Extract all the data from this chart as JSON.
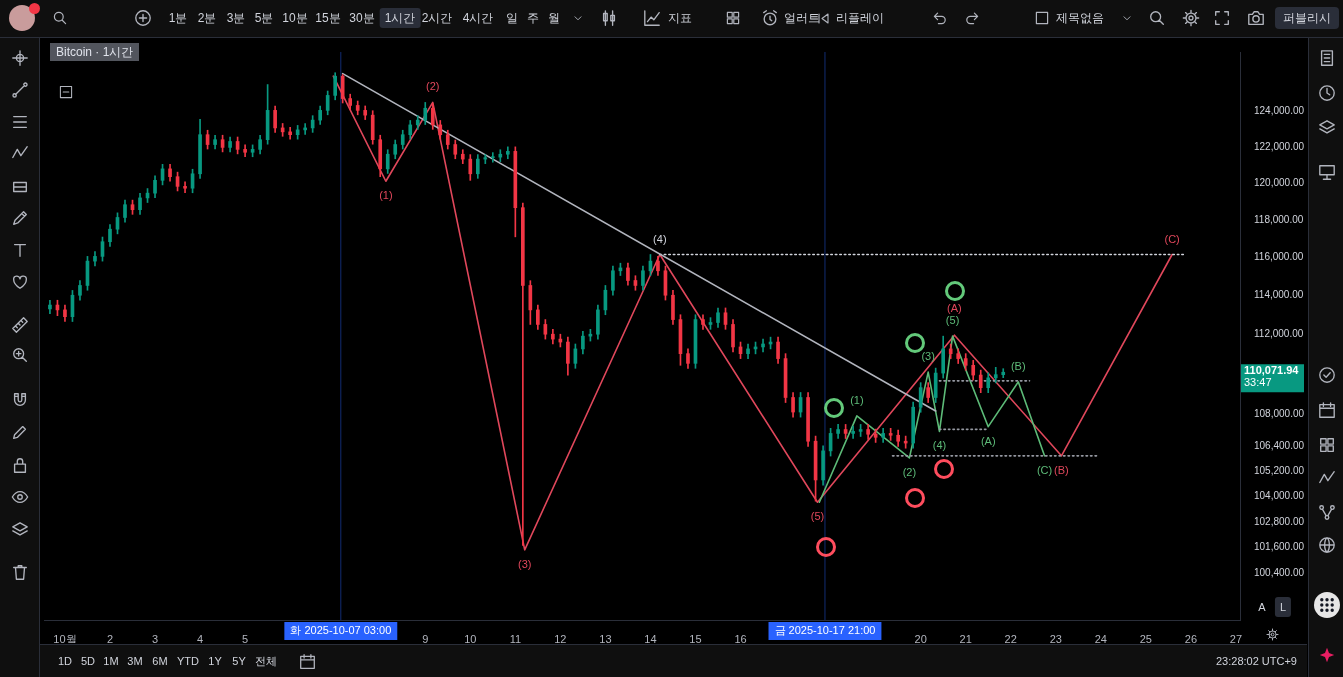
{
  "chart_data": {
    "type": "candlestick",
    "title": "Bitcoin · 1시간",
    "log": true,
    "xlim": [
      "2025-09-30T12:50",
      "2025-10-27T02:10"
    ],
    "ylim": [
      98300,
      127400
    ],
    "xticks": [
      {
        "value": "2025-10-01",
        "label": "10월"
      },
      {
        "value": "2025-10-02",
        "label": "2"
      },
      {
        "value": "2025-10-03",
        "label": "3"
      },
      {
        "value": "2025-10-04",
        "label": "4"
      },
      {
        "value": "2025-10-05",
        "label": "5"
      },
      {
        "value": "2025-10-09",
        "label": "9"
      },
      {
        "value": "2025-10-10",
        "label": "10"
      },
      {
        "value": "2025-10-11",
        "label": "11"
      },
      {
        "value": "2025-10-12",
        "label": "12"
      },
      {
        "value": "2025-10-13",
        "label": "13"
      },
      {
        "value": "2025-10-14",
        "label": "14"
      },
      {
        "value": "2025-10-15",
        "label": "15"
      },
      {
        "value": "2025-10-16",
        "label": "16"
      },
      {
        "value": "2025-10-20",
        "label": "20"
      },
      {
        "value": "2025-10-21",
        "label": "21"
      },
      {
        "value": "2025-10-22",
        "label": "22"
      },
      {
        "value": "2025-10-23",
        "label": "23"
      },
      {
        "value": "2025-10-24",
        "label": "24"
      },
      {
        "value": "2025-10-25",
        "label": "25"
      },
      {
        "value": "2025-10-26",
        "label": "26"
      },
      {
        "value": "2025-10-27",
        "label": "27"
      }
    ],
    "yticks": [
      {
        "value": 124000,
        "label": "124,000.00"
      },
      {
        "value": 122000,
        "label": "122,000.00"
      },
      {
        "value": 120000,
        "label": "120,000.00"
      },
      {
        "value": 118000,
        "label": "118,000.00"
      },
      {
        "value": 116000,
        "label": "116,000.00"
      },
      {
        "value": 114000,
        "label": "114,000.00"
      },
      {
        "value": 112000,
        "label": "112,000.00"
      },
      {
        "value": 108000,
        "label": "108,000.00"
      },
      {
        "value": 106400,
        "label": "106,400.00"
      },
      {
        "value": 105200,
        "label": "105,200.00"
      },
      {
        "value": 104000,
        "label": "104,000.00"
      },
      {
        "value": 102800,
        "label": "102,800.00"
      },
      {
        "value": 101600,
        "label": "101,600.00"
      },
      {
        "value": 100400,
        "label": "100,400.00"
      }
    ],
    "x": [
      "2025-09-30T16:00",
      "2025-09-30T20:00",
      "2025-10-01T00:00",
      "2025-10-01T04:00",
      "2025-10-01T08:00",
      "2025-10-01T12:00",
      "2025-10-01T16:00",
      "2025-10-01T20:00",
      "2025-10-02T00:00",
      "2025-10-02T04:00",
      "2025-10-02T08:00",
      "2025-10-02T12:00",
      "2025-10-02T16:00",
      "2025-10-02T20:00",
      "2025-10-03T00:00",
      "2025-10-03T04:00",
      "2025-10-03T08:00",
      "2025-10-03T12:00",
      "2025-10-03T16:00",
      "2025-10-03T20:00",
      "2025-10-04T00:00",
      "2025-10-04T04:00",
      "2025-10-04T08:00",
      "2025-10-04T12:00",
      "2025-10-04T16:00",
      "2025-10-04T20:00",
      "2025-10-05T00:00",
      "2025-10-05T04:00",
      "2025-10-05T08:00",
      "2025-10-05T12:00",
      "2025-10-05T16:00",
      "2025-10-05T20:00",
      "2025-10-06T00:00",
      "2025-10-06T04:00",
      "2025-10-06T08:00",
      "2025-10-06T12:00",
      "2025-10-06T16:00",
      "2025-10-06T20:00",
      "2025-10-07T00:00",
      "2025-10-07T04:00",
      "2025-10-07T08:00",
      "2025-10-07T12:00",
      "2025-10-07T16:00",
      "2025-10-07T20:00",
      "2025-10-08T00:00",
      "2025-10-08T04:00",
      "2025-10-08T08:00",
      "2025-10-08T12:00",
      "2025-10-08T16:00",
      "2025-10-08T20:00",
      "2025-10-09T00:00",
      "2025-10-09T04:00",
      "2025-10-09T08:00",
      "2025-10-09T12:00",
      "2025-10-09T16:00",
      "2025-10-09T20:00",
      "2025-10-10T00:00",
      "2025-10-10T04:00",
      "2025-10-10T08:00",
      "2025-10-10T12:00",
      "2025-10-10T16:00",
      "2025-10-10T20:00",
      "2025-10-11T00:00",
      "2025-10-11T04:00",
      "2025-10-11T08:00",
      "2025-10-11T12:00",
      "2025-10-11T16:00",
      "2025-10-11T20:00",
      "2025-10-12T00:00",
      "2025-10-12T04:00",
      "2025-10-12T08:00",
      "2025-10-12T12:00",
      "2025-10-12T16:00",
      "2025-10-12T20:00",
      "2025-10-13T00:00",
      "2025-10-13T04:00",
      "2025-10-13T08:00",
      "2025-10-13T12:00",
      "2025-10-13T16:00",
      "2025-10-13T20:00",
      "2025-10-14T00:00",
      "2025-10-14T04:00",
      "2025-10-14T08:00",
      "2025-10-14T12:00",
      "2025-10-14T16:00",
      "2025-10-14T20:00",
      "2025-10-15T00:00",
      "2025-10-15T04:00",
      "2025-10-15T08:00",
      "2025-10-15T12:00",
      "2025-10-15T16:00",
      "2025-10-15T20:00",
      "2025-10-16T00:00",
      "2025-10-16T04:00",
      "2025-10-16T08:00",
      "2025-10-16T12:00",
      "2025-10-16T16:00",
      "2025-10-16T20:00",
      "2025-10-17T00:00",
      "2025-10-17T04:00",
      "2025-10-17T08:00",
      "2025-10-17T12:00",
      "2025-10-17T16:00",
      "2025-10-17T20:00",
      "2025-10-18T00:00",
      "2025-10-18T04:00",
      "2025-10-18T08:00",
      "2025-10-18T12:00",
      "2025-10-18T16:00",
      "2025-10-18T20:00",
      "2025-10-19T00:00",
      "2025-10-19T04:00",
      "2025-10-19T08:00",
      "2025-10-19T12:00",
      "2025-10-19T16:00",
      "2025-10-19T20:00",
      "2025-10-20T00:00",
      "2025-10-20T04:00",
      "2025-10-20T08:00",
      "2025-10-20T12:00",
      "2025-10-20T16:00",
      "2025-10-20T20:00",
      "2025-10-21T00:00",
      "2025-10-21T04:00",
      "2025-10-21T08:00",
      "2025-10-21T12:00",
      "2025-10-21T16:00",
      "2025-10-21T20:00"
    ],
    "ohlc": [
      [
        113300,
        113750,
        113050,
        113500
      ],
      [
        113500,
        113750,
        112950,
        113250
      ],
      [
        113250,
        113500,
        112650,
        112900
      ],
      [
        112900,
        114260,
        112650,
        114010
      ],
      [
        114010,
        114770,
        113760,
        114520
      ],
      [
        114520,
        116050,
        114270,
        115800
      ],
      [
        115800,
        116300,
        115550,
        116050
      ],
      [
        116050,
        117080,
        115800,
        116830
      ],
      [
        116830,
        117750,
        116580,
        117500
      ],
      [
        117500,
        118380,
        117250,
        118130
      ],
      [
        118130,
        119070,
        117880,
        118820
      ],
      [
        118820,
        119070,
        118300,
        118550
      ],
      [
        118550,
        119440,
        118300,
        119190
      ],
      [
        119190,
        119700,
        118940,
        119450
      ],
      [
        119450,
        120400,
        119200,
        120150
      ],
      [
        120150,
        121030,
        119900,
        120780
      ],
      [
        120780,
        121030,
        120100,
        120350
      ],
      [
        120350,
        120600,
        119570,
        119820
      ],
      [
        119820,
        120070,
        119470,
        119720
      ],
      [
        119720,
        120760,
        119470,
        120510
      ],
      [
        120510,
        123550,
        120260,
        122680
      ],
      [
        122680,
        122930,
        121880,
        122130
      ],
      [
        122130,
        122650,
        121880,
        122400
      ],
      [
        122400,
        122650,
        121720,
        121970
      ],
      [
        121970,
        122550,
        121720,
        122300
      ],
      [
        122300,
        122550,
        121610,
        121860
      ],
      [
        121860,
        122110,
        121450,
        121700
      ],
      [
        121700,
        122110,
        121450,
        121860
      ],
      [
        121860,
        122650,
        121610,
        122400
      ],
      [
        122400,
        125520,
        122150,
        124050
      ],
      [
        124050,
        124300,
        122810,
        123060
      ],
      [
        123060,
        123310,
        122590,
        122840
      ],
      [
        122840,
        123090,
        122430,
        122680
      ],
      [
        122680,
        123200,
        122430,
        122950
      ],
      [
        122950,
        123310,
        122700,
        123060
      ],
      [
        123060,
        123750,
        122810,
        123500
      ],
      [
        123500,
        124300,
        123250,
        124050
      ],
      [
        124050,
        125150,
        123800,
        124900
      ],
      [
        124900,
        126200,
        124650,
        126000
      ],
      [
        126000,
        126100,
        124470,
        124720
      ],
      [
        124720,
        124970,
        124080,
        124330
      ],
      [
        124330,
        124580,
        123800,
        124050
      ],
      [
        124050,
        124300,
        123530,
        123780
      ],
      [
        123780,
        124030,
        122150,
        122400
      ],
      [
        122400,
        122650,
        120350,
        120780
      ],
      [
        120780,
        121840,
        120530,
        121590
      ],
      [
        121590,
        122380,
        121340,
        122130
      ],
      [
        122130,
        122930,
        121880,
        122680
      ],
      [
        122680,
        123480,
        122430,
        123230
      ],
      [
        123230,
        123750,
        122980,
        123500
      ],
      [
        123500,
        124500,
        123250,
        124170
      ],
      [
        124170,
        124420,
        122980,
        123230
      ],
      [
        123230,
        123480,
        122430,
        122680
      ],
      [
        122680,
        122930,
        121880,
        122130
      ],
      [
        122130,
        122380,
        121340,
        121590
      ],
      [
        121590,
        121840,
        121070,
        121320
      ],
      [
        121320,
        121570,
        120150,
        120510
      ],
      [
        120510,
        121570,
        120260,
        121320
      ],
      [
        121320,
        121570,
        121070,
        121400
      ],
      [
        121400,
        121680,
        121150,
        121430
      ],
      [
        121430,
        121840,
        121180,
        121590
      ],
      [
        121590,
        122000,
        121340,
        121750
      ],
      [
        121750,
        122000,
        117090,
        118660
      ],
      [
        118660,
        118910,
        101700,
        114520
      ],
      [
        114520,
        114770,
        112500,
        113250
      ],
      [
        113250,
        113500,
        112250,
        112500
      ],
      [
        112500,
        112750,
        111750,
        112000
      ],
      [
        112000,
        112250,
        111500,
        111750
      ],
      [
        111750,
        112000,
        111350,
        111600
      ],
      [
        111600,
        111850,
        109930,
        110520
      ],
      [
        110520,
        111500,
        110270,
        111250
      ],
      [
        111250,
        112150,
        111000,
        111900
      ],
      [
        111900,
        112250,
        111650,
        112000
      ],
      [
        112000,
        113500,
        111750,
        113250
      ],
      [
        113250,
        114520,
        113000,
        114270
      ],
      [
        114270,
        115540,
        114020,
        115290
      ],
      [
        115290,
        115690,
        115040,
        115440
      ],
      [
        115440,
        115690,
        114530,
        114780
      ],
      [
        114780,
        115030,
        114270,
        114520
      ],
      [
        114520,
        115540,
        114270,
        115290
      ],
      [
        115290,
        116150,
        115040,
        115800
      ],
      [
        115800,
        116050,
        115040,
        115290
      ],
      [
        115290,
        115540,
        113760,
        114010
      ],
      [
        114010,
        114260,
        112500,
        112750
      ],
      [
        112750,
        113000,
        110420,
        111010
      ],
      [
        111010,
        111260,
        110270,
        110520
      ],
      [
        110520,
        113000,
        110270,
        112750
      ],
      [
        112750,
        113000,
        112250,
        112500
      ],
      [
        112500,
        112850,
        112250,
        112600
      ],
      [
        112600,
        113350,
        112350,
        113100
      ],
      [
        113100,
        113350,
        112250,
        112500
      ],
      [
        112500,
        112750,
        111100,
        111350
      ],
      [
        111350,
        111600,
        110760,
        111010
      ],
      [
        111010,
        111500,
        110760,
        111250
      ],
      [
        111250,
        111600,
        111000,
        111350
      ],
      [
        111350,
        111750,
        111100,
        111500
      ],
      [
        111500,
        111850,
        111250,
        111600
      ],
      [
        111600,
        111850,
        110510,
        110760
      ],
      [
        110760,
        111010,
        108560,
        108810
      ],
      [
        108810,
        109060,
        107840,
        108090
      ],
      [
        108090,
        109060,
        107840,
        108810
      ],
      [
        108810,
        109060,
        106410,
        106660
      ],
      [
        106660,
        106910,
        103780,
        104790
      ],
      [
        104790,
        106440,
        104540,
        106190
      ],
      [
        106190,
        107290,
        105940,
        107040
      ],
      [
        107040,
        107480,
        106790,
        107230
      ],
      [
        107230,
        107480,
        106790,
        107040
      ],
      [
        107040,
        107390,
        106790,
        107140
      ],
      [
        107140,
        107480,
        106890,
        107230
      ],
      [
        107230,
        107480,
        106750,
        107000
      ],
      [
        107000,
        107250,
        106600,
        106850
      ],
      [
        106850,
        107290,
        106600,
        107040
      ],
      [
        107040,
        107290,
        106700,
        106950
      ],
      [
        106950,
        107200,
        106410,
        106660
      ],
      [
        106660,
        106910,
        106320,
        106570
      ],
      [
        106570,
        108580,
        106320,
        108330
      ],
      [
        108330,
        109550,
        108080,
        109300
      ],
      [
        109300,
        109550,
        108560,
        108810
      ],
      [
        108810,
        110280,
        108560,
        110030
      ],
      [
        110030,
        111900,
        109780,
        111250
      ],
      [
        111250,
        111500,
        110760,
        111010
      ],
      [
        111010,
        111260,
        110510,
        110760
      ],
      [
        110760,
        111010,
        110170,
        110420
      ],
      [
        110420,
        110670,
        109680,
        109930
      ],
      [
        109930,
        110180,
        109050,
        109300
      ],
      [
        109300,
        110040,
        109050,
        109790
      ],
      [
        109790,
        110320,
        109540,
        109950
      ],
      [
        109950,
        110250,
        109800,
        110071.94
      ]
    ],
    "colors": [
      "#089981",
      "#f23645",
      "#f23645",
      "#089981",
      "#089981",
      "#089981",
      "#089981",
      "#089981",
      "#089981",
      "#089981",
      "#089981",
      "#f23645",
      "#089981",
      "#089981",
      "#089981",
      "#089981",
      "#f23645",
      "#f23645",
      "#f23645",
      "#089981",
      "#089981",
      "#f23645",
      "#089981",
      "#f23645",
      "#089981",
      "#f23645",
      "#f23645",
      "#089981",
      "#089981",
      "#089981",
      "#f23645",
      "#f23645",
      "#f23645",
      "#089981",
      "#089981",
      "#089981",
      "#089981",
      "#089981",
      "#089981",
      "#f23645",
      "#f23645",
      "#f23645",
      "#f23645",
      "#f23645",
      "#f23645",
      "#089981",
      "#089981",
      "#089981",
      "#089981",
      "#089981",
      "#089981",
      "#f23645",
      "#f23645",
      "#f23645",
      "#f23645",
      "#f23645",
      "#f23645",
      "#089981",
      "#089981",
      "#089981",
      "#089981",
      "#089981",
      "#f23645",
      "#f23645",
      "#f23645",
      "#f23645",
      "#f23645",
      "#f23645",
      "#f23645",
      "#f23645",
      "#089981",
      "#089981",
      "#089981",
      "#089981",
      "#089981",
      "#089981",
      "#089981",
      "#f23645",
      "#f23645",
      "#089981",
      "#089981",
      "#f23645",
      "#f23645",
      "#f23645",
      "#f23645",
      "#f23645",
      "#089981",
      "#f23645",
      "#089981",
      "#089981",
      "#f23645",
      "#f23645",
      "#f23645",
      "#089981",
      "#089981",
      "#089981",
      "#089981",
      "#f23645",
      "#f23645",
      "#f23645",
      "#089981",
      "#f23645",
      "#f23645",
      "#089981",
      "#089981",
      "#089981",
      "#f23645",
      "#089981",
      "#089981",
      "#f23645",
      "#f23645",
      "#089981",
      "#f23645",
      "#f23645",
      "#f23645",
      "#089981",
      "#089981",
      "#f23645",
      "#089981",
      "#089981",
      "#f23645",
      "#f23645",
      "#f23645",
      "#f23645",
      "#f23645",
      "#089981",
      "#089981",
      "#089981"
    ],
    "series": [
      {
        "type": "line",
        "color": "#b2b5be",
        "x": [
          "2025-10-07T04:00",
          "2025-10-20T08:00"
        ],
        "values": [
          126150,
          108140
        ]
      },
      {
        "type": "line",
        "color": "#d1d4dc",
        "line_style": "dotted",
        "x": [
          "2025-10-14T05:00",
          "2025-10-25T21:00"
        ],
        "values": [
          116150,
          116150
        ]
      },
      {
        "type": "line",
        "color": "#9598a1",
        "line_style": "dotted",
        "x": [
          "2025-10-19T09:00",
          "2025-10-23T22:00"
        ],
        "values": [
          105950,
          105950
        ]
      },
      {
        "type": "line",
        "color": "#9598a1",
        "line_style": "dotted",
        "x": [
          "2025-10-20T10:00",
          "2025-10-21T12:00"
        ],
        "values": [
          107240,
          107240
        ]
      },
      {
        "type": "line",
        "color": "#9598a1",
        "line_style": "dotted",
        "x": [
          "2025-10-20T10:00",
          "2025-10-22T10:00"
        ],
        "values": [
          109640,
          109640
        ]
      },
      {
        "type": "line",
        "color": "#5dbb78",
        "x": [
          "2025-10-17T18:00",
          "2025-10-18T14:00",
          "2025-10-19T18:00",
          "2025-10-20T04:00",
          "2025-10-20T10:00",
          "2025-10-20T17:00",
          "2025-10-21T12:00",
          "2025-10-22T04:00",
          "2025-10-22T18:00"
        ],
        "values": [
          103730,
          107900,
          105850,
          110080,
          107140,
          111900,
          107370,
          109590,
          105950
        ]
      },
      {
        "type": "line",
        "color": "#e0475b",
        "x": [
          "2025-10-06T23:00",
          "2025-10-08T03:00",
          "2025-10-09T04:00",
          "2025-10-11T05:00",
          "2025-10-14T05:00",
          "2025-10-17T17:00",
          "2025-10-20T18:00",
          "2025-10-23T03:00",
          "2025-10-25T14:00"
        ],
        "values": [
          126000,
          120100,
          124500,
          101500,
          116150,
          103730,
          111950,
          105950,
          116150
        ]
      }
    ],
    "ref_lines": [
      {
        "axis": "x",
        "value": "2025-10-07T03:00",
        "label": "화 2025-10-07 03:00",
        "color": "#2962ff"
      },
      {
        "axis": "x",
        "value": "2025-10-17T21:00",
        "label": "금 2025-10-17 21:00",
        "color": "#2962ff"
      }
    ],
    "annotations": [
      "1분",
      "2분",
      "3분",
      "5분",
      "10분",
      "15분",
      "30분",
      "1시간",
      "2시간",
      "4시간",
      "일",
      "주",
      "월",
      "지표",
      "얼러트",
      "리플레이",
      "제목없음",
      "퍼블리시",
      "1D",
      "5D",
      "1M",
      "3M",
      "6M",
      "YTD",
      "1Y",
      "5Y",
      "전체",
      "23:28:02 UTC+9",
      "A",
      "L",
      "110,071.94",
      "33:47",
      {
        "text": "(1)",
        "x": "2025-10-18T14:00",
        "y": 107900
      },
      {
        "text": "(2)",
        "x": "2025-10-19T18:00",
        "y": 105850
      },
      {
        "text": "(3)",
        "x": "2025-10-20T04:00",
        "y": 110080
      },
      {
        "text": "(4)",
        "x": "2025-10-20T10:00",
        "y": 107140
      },
      {
        "text": "(5)",
        "x": "2025-10-20T17:00",
        "y": 111900
      },
      {
        "text": "(A)",
        "x": "2025-10-21T12:00",
        "y": 107370
      },
      {
        "text": "(B)",
        "x": "2025-10-22T04:00",
        "y": 109590
      },
      {
        "text": "(C)",
        "x": "2025-10-22T18:00",
        "y": 105950
      },
      {
        "text": "(1)",
        "x": "2025-10-08T03:00",
        "y": 120100
      },
      {
        "text": "(2)",
        "x": "2025-10-09T04:00",
        "y": 124500
      },
      {
        "text": "(3)",
        "x": "2025-10-11T05:00",
        "y": 101500
      },
      {
        "text": "(4)",
        "x": "2025-10-14T05:00",
        "y": 116150
      },
      {
        "text": "(5)",
        "x": "2025-10-17T17:00",
        "y": 103730
      },
      {
        "text": "(A)",
        "x": "2025-10-20T18:00",
        "y": 111950
      },
      {
        "text": "(B)",
        "x": "2025-10-23T03:00",
        "y": 105950
      },
      {
        "text": "(C)",
        "x": "2025-10-25T14:00",
        "y": 116150
      }
    ]
  }
}
